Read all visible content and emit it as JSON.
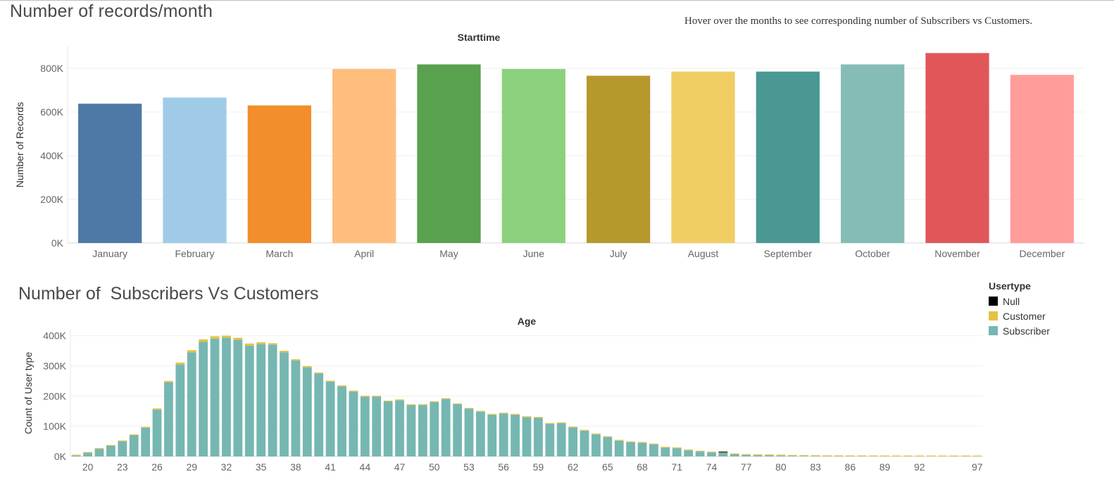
{
  "header": {
    "title_top": "Number of records/month",
    "hint": "Hover over the months to see corresponding number of Subscribers vs Customers.",
    "title_bottom": "Number of  Subscribers Vs Customers"
  },
  "legend": {
    "title": "Usertype",
    "items": [
      {
        "label": "Null",
        "color": "#000000"
      },
      {
        "label": "Customer",
        "color": "#e6c244"
      },
      {
        "label": "Subscriber",
        "color": "#76b7b2"
      }
    ]
  },
  "chart_data": [
    {
      "type": "bar",
      "title": "Starttime",
      "ylabel": "Number of Records",
      "ylim": [
        0,
        900000
      ],
      "yticks": [
        0,
        200000,
        400000,
        600000,
        800000
      ],
      "ytick_labels": [
        "0K",
        "200K",
        "400K",
        "600K",
        "800K"
      ],
      "categories": [
        "January",
        "February",
        "March",
        "April",
        "May",
        "June",
        "July",
        "August",
        "September",
        "October",
        "November",
        "December"
      ],
      "values": [
        638000,
        666000,
        630000,
        797000,
        818000,
        797000,
        766000,
        785000,
        785000,
        818000,
        870000,
        770000
      ],
      "colors": [
        "#4e79a7",
        "#a0cbe8",
        "#f28e2b",
        "#ffbe7d",
        "#59a14f",
        "#8cd17d",
        "#b6992d",
        "#f1ce63",
        "#499894",
        "#86bcb6",
        "#e15759",
        "#ff9d9a"
      ],
      "grid": true
    },
    {
      "type": "bar",
      "stacked": true,
      "title": "Age",
      "ylabel": "Count of User type",
      "ylim": [
        0,
        420000
      ],
      "yticks": [
        0,
        100000,
        200000,
        300000,
        400000
      ],
      "ytick_labels": [
        "0K",
        "100K",
        "200K",
        "300K",
        "400K"
      ],
      "categories": [
        "19",
        "20",
        "21",
        "22",
        "23",
        "24",
        "25",
        "26",
        "27",
        "28",
        "29",
        "30",
        "31",
        "32",
        "33",
        "34",
        "35",
        "36",
        "37",
        "38",
        "39",
        "40",
        "41",
        "42",
        "43",
        "44",
        "45",
        "46",
        "47",
        "48",
        "49",
        "50",
        "51",
        "52",
        "53",
        "54",
        "55",
        "56",
        "57",
        "58",
        "59",
        "60",
        "61",
        "62",
        "63",
        "64",
        "65",
        "66",
        "67",
        "68",
        "69",
        "70",
        "71",
        "72",
        "73",
        "74",
        "75",
        "76",
        "77",
        "78",
        "79",
        "80",
        "81",
        "82",
        "83",
        "84",
        "85",
        "86",
        "87",
        "88",
        "89",
        "90",
        "91",
        "92",
        "93",
        "94",
        "95",
        "96",
        "97"
      ],
      "xtick_labels": [
        "20",
        "23",
        "26",
        "29",
        "32",
        "35",
        "38",
        "41",
        "44",
        "47",
        "50",
        "53",
        "56",
        "59",
        "62",
        "65",
        "68",
        "71",
        "74",
        "77",
        "80",
        "83",
        "86",
        "89",
        "92",
        "97"
      ],
      "series": [
        {
          "name": "Subscriber",
          "color": "#76b7b2",
          "values": [
            3000,
            12000,
            25000,
            35000,
            50000,
            70000,
            95000,
            155000,
            245000,
            305000,
            345000,
            380000,
            390000,
            393000,
            386000,
            367000,
            372000,
            370000,
            345000,
            318000,
            295000,
            275000,
            248000,
            232000,
            215000,
            198000,
            198000,
            182000,
            186000,
            170000,
            170000,
            180000,
            190000,
            173000,
            158000,
            148000,
            138000,
            142000,
            138000,
            130000,
            128000,
            108000,
            110000,
            96000,
            85000,
            73000,
            64000,
            52000,
            47000,
            45000,
            40000,
            29000,
            27000,
            20000,
            16000,
            13000,
            12000,
            7000,
            5000,
            4000,
            3500,
            3000,
            2000,
            1500,
            1000,
            800,
            600,
            500,
            400,
            300,
            300,
            200,
            200,
            200,
            150,
            150,
            100,
            100,
            100
          ]
        },
        {
          "name": "Customer",
          "color": "#e6c244",
          "values": [
            1000,
            1000,
            1000,
            1000,
            2000,
            2000,
            3000,
            4000,
            5000,
            6000,
            7000,
            8000,
            8000,
            7000,
            7000,
            7000,
            6000,
            5000,
            5000,
            4000,
            4000,
            3000,
            3000,
            3000,
            3000,
            2000,
            2000,
            2000,
            2000,
            2000,
            2000,
            2000,
            2000,
            1500,
            1500,
            1500,
            1500,
            1500,
            1000,
            1000,
            1000,
            1000,
            1000,
            1000,
            1000,
            1000,
            1000,
            1000,
            1000,
            1000,
            1000,
            1000,
            1000,
            1000,
            1000,
            1000,
            1000,
            1000,
            1000,
            1000,
            1000,
            1000,
            500,
            500,
            500,
            500,
            300,
            300,
            300,
            300,
            300,
            300,
            300,
            300,
            300,
            300,
            300,
            300,
            300
          ]
        },
        {
          "name": "Null",
          "color": "#000000",
          "values": [
            0,
            0,
            0,
            0,
            0,
            0,
            0,
            0,
            0,
            0,
            0,
            0,
            0,
            0,
            0,
            0,
            0,
            0,
            0,
            0,
            0,
            0,
            0,
            0,
            0,
            0,
            0,
            0,
            0,
            0,
            0,
            0,
            0,
            0,
            0,
            0,
            0,
            0,
            0,
            0,
            0,
            0,
            0,
            0,
            0,
            0,
            0,
            0,
            0,
            0,
            0,
            0,
            0,
            0,
            0,
            0,
            1000,
            0,
            0,
            0,
            0,
            0,
            0,
            0,
            0,
            0,
            0,
            0,
            0,
            0,
            0,
            0,
            0,
            0,
            0,
            0,
            0,
            0,
            0
          ]
        }
      ],
      "legend": "right",
      "grid": true
    }
  ]
}
